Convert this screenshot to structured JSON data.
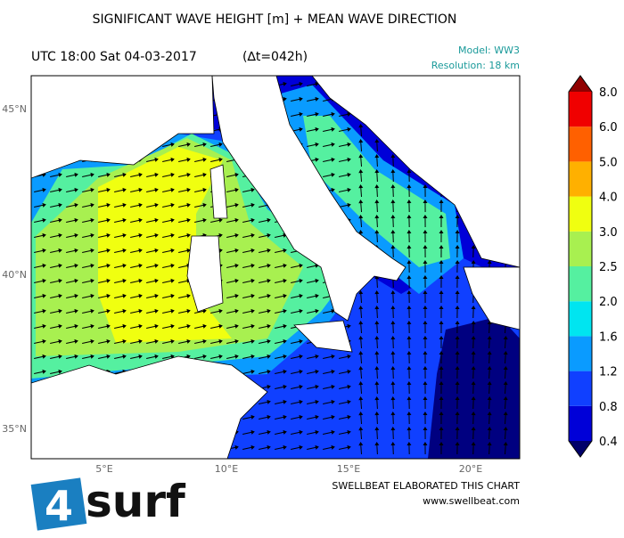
{
  "title": "SIGNIFICANT WAVE HEIGHT [m] + MEAN WAVE DIRECTION",
  "time": "UTC 18:00 Sat 04-03-2017",
  "lead": "(∆t=042h)",
  "model": "Model: WW3",
  "resolution": "Resolution: 18 km",
  "map": {
    "lon_ticks": [
      "5°E",
      "10°E",
      "15°E",
      "20°E"
    ],
    "lat_ticks": [
      "45°N",
      "40°N",
      "35°N"
    ]
  },
  "colorbar": {
    "labels": [
      "0.4",
      "0.8",
      "1.2",
      "1.6",
      "2.0",
      "2.5",
      "3.0",
      "4.0",
      "5.0",
      "6.0",
      "8.0"
    ],
    "colors": [
      "#0000d8",
      "#1040ff",
      "#0a9bff",
      "#00e5f0",
      "#55f0a0",
      "#a8f050",
      "#f0ff10",
      "#ffb000",
      "#ff6000",
      "#f00000"
    ],
    "under_color": "#00006a",
    "over_color": "#900000"
  },
  "footer": {
    "credit": "SWELLBEAT ELABORATED THIS CHART",
    "url": "www.swellbeat.com",
    "logo_number": "4",
    "logo_text": "surf"
  }
}
